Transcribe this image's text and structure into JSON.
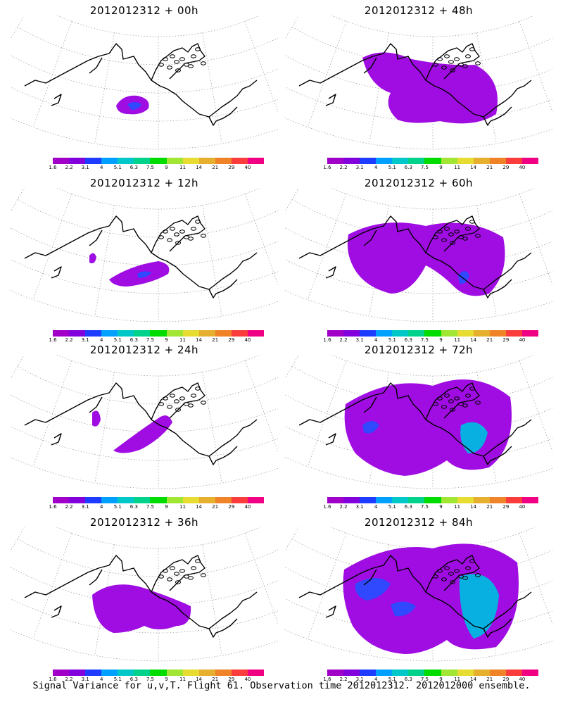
{
  "panels": [
    {
      "title": "2012012312 + 00h"
    },
    {
      "title": "2012012312 + 48h"
    },
    {
      "title": "2012012312 + 12h"
    },
    {
      "title": "2012012312 + 60h"
    },
    {
      "title": "2012012312 + 24h"
    },
    {
      "title": "2012012312 + 72h"
    },
    {
      "title": "2012012312 + 36h"
    },
    {
      "title": "2012012312 + 84h"
    }
  ],
  "colorbar": {
    "labels": [
      "1.6",
      "2.2",
      "3.1",
      "4",
      "5.1",
      "6.3",
      "7.5",
      "9",
      "11",
      "14",
      "21",
      "29",
      "40"
    ],
    "colors": [
      "#a000c8",
      "#8200dc",
      "#1e3cff",
      "#00a0ff",
      "#00c8c8",
      "#00d28c",
      "#00dc00",
      "#a0e632",
      "#e6dc32",
      "#e6af2d",
      "#f08228",
      "#fa3c3c",
      "#f00082"
    ]
  },
  "footer": {
    "caption": "Signal Variance for u,v,T. Flight 61. Observation time 2012012312. 2012012000 ensemble."
  },
  "colors": {
    "outline": "#000000",
    "grid": "#999999",
    "field_base": "#9a00e0",
    "field_mid": "#2a4cff",
    "field_high": "#00b8e0"
  }
}
